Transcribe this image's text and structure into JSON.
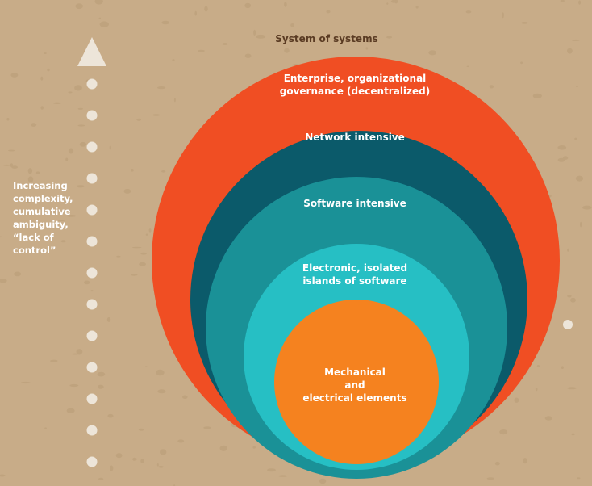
{
  "top_label": "System of systems",
  "side_label": [
    "Increasing",
    "complexity,",
    "cumulative",
    "ambiguity,",
    "“lack of",
    "control”"
  ],
  "layers": [
    {
      "label": [
        "Enterprise, organizational",
        "governance (decentralized)"
      ],
      "color": "#f04e23"
    },
    {
      "label": [
        "Network intensive"
      ],
      "color": "#0b5a6a"
    },
    {
      "label": [
        "Software intensive"
      ],
      "color": "#1a9197"
    },
    {
      "label": [
        "Electronic, isolated",
        "islands of software"
      ],
      "color": "#26bfc4"
    },
    {
      "label": [
        "Mechanical",
        "and",
        "electrical elements"
      ],
      "color": "#f5821f"
    }
  ],
  "colors": {
    "background": "#c8ac88",
    "arrow": "#ede5d9",
    "top_label": "#5a3b23"
  },
  "icons": {
    "arrow": "up-arrow-icon",
    "dots": "dotted-line"
  }
}
